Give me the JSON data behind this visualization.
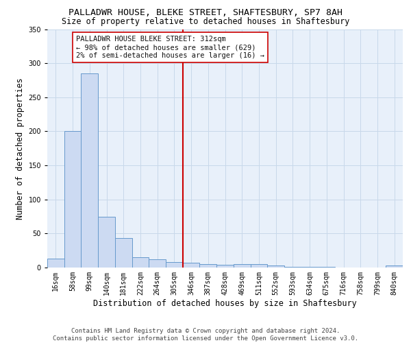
{
  "title1": "PALLADWR HOUSE, BLEKE STREET, SHAFTESBURY, SP7 8AH",
  "title2": "Size of property relative to detached houses in Shaftesbury",
  "xlabel": "Distribution of detached houses by size in Shaftesbury",
  "ylabel": "Number of detached properties",
  "bin_labels": [
    "16sqm",
    "58sqm",
    "99sqm",
    "140sqm",
    "181sqm",
    "222sqm",
    "264sqm",
    "305sqm",
    "346sqm",
    "387sqm",
    "428sqm",
    "469sqm",
    "511sqm",
    "552sqm",
    "593sqm",
    "634sqm",
    "675sqm",
    "716sqm",
    "758sqm",
    "799sqm",
    "840sqm"
  ],
  "bar_heights": [
    13,
    200,
    285,
    75,
    43,
    15,
    12,
    8,
    7,
    5,
    4,
    5,
    5,
    3,
    1,
    1,
    1,
    0,
    0,
    0,
    3
  ],
  "bar_color": "#ccdaf2",
  "bar_edge_color": "#6699cc",
  "vline_x": 7.5,
  "vline_color": "#cc0000",
  "annotation_box_text": "PALLADWR HOUSE BLEKE STREET: 312sqm\n← 98% of detached houses are smaller (629)\n2% of semi-detached houses are larger (16) →",
  "annotation_box_color": "#cc0000",
  "annotation_box_bg": "#ffffff",
  "ylim": [
    0,
    350
  ],
  "yticks": [
    0,
    50,
    100,
    150,
    200,
    250,
    300,
    350
  ],
  "grid_color": "#c8d8ea",
  "bg_color": "#e8f0fa",
  "footer_text": "Contains HM Land Registry data © Crown copyright and database right 2024.\nContains public sector information licensed under the Open Government Licence v3.0.",
  "title1_fontsize": 9.5,
  "title2_fontsize": 8.5,
  "xlabel_fontsize": 8.5,
  "ylabel_fontsize": 8.5,
  "tick_fontsize": 7,
  "annotation_fontsize": 7.5,
  "footer_fontsize": 6.5
}
